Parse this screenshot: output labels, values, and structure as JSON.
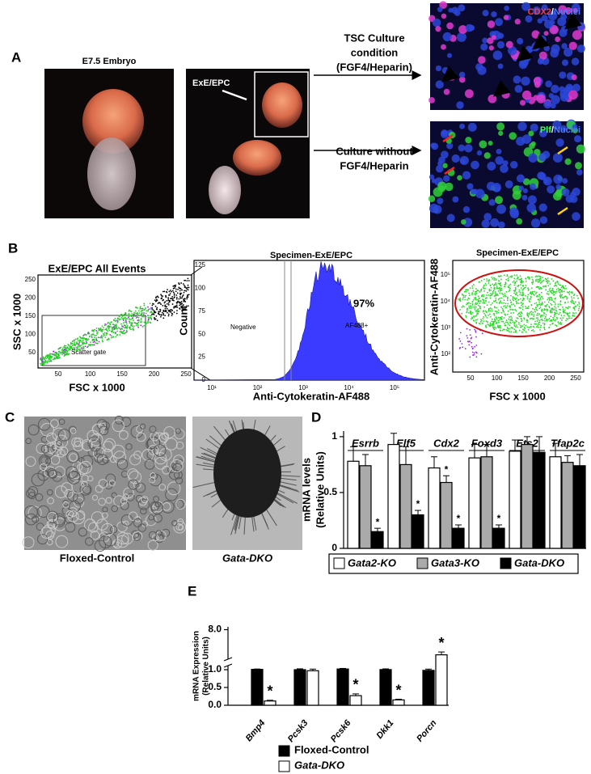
{
  "panel_a": {
    "label": "A",
    "embryo_title": "E7.5 Embryo",
    "inset_label": "ExE/EPC",
    "arrow_top": [
      "TSC Culture",
      "condition",
      "(FGF4/Heparin)"
    ],
    "arrow_bottom": [
      "Culture without",
      "FGF4/Heparin"
    ],
    "stain_top": {
      "marker": "CDX2",
      "separator": "/",
      "counter": "Nuclei"
    },
    "stain_bottom": {
      "marker": "Plf",
      "separator": "/",
      "counter": "Nuclei"
    }
  },
  "panel_b": {
    "label": "B",
    "events_plot": {
      "title": "ExE/EPC All Events",
      "y_label": "SSC x 1000",
      "x_label": "FSC x 1000",
      "gate_label": "Scatter gate",
      "xticks": [
        "50",
        "100",
        "150",
        "200",
        "250"
      ],
      "yticks": [
        "50",
        "100",
        "150",
        "200",
        "250"
      ]
    },
    "histogram": {
      "title": "Specimen-ExE/EPC",
      "y_label": "Count",
      "x_label": "Anti-Cytokeratin-AF488",
      "negative_label": "Negative",
      "positive_label": "AF488+",
      "percent": "97%",
      "yticks": [
        "0",
        "25",
        "50",
        "75",
        "100",
        "125"
      ],
      "xticks": [
        "10¹",
        "10²",
        "10³",
        "10⁴",
        "10⁵"
      ]
    },
    "gated_plot": {
      "title": "Specimen-ExE/EPC",
      "y_label": "Anti-Cytokeratin-AF488",
      "x_label": "FSC x 1000",
      "xticks": [
        "50",
        "100",
        "150",
        "200",
        "250"
      ],
      "yticks": [
        "10²",
        "10³",
        "10⁴",
        "10⁵"
      ]
    }
  },
  "panel_c": {
    "label": "C",
    "left_caption": "Floxed-Control",
    "right_caption": "Gata-DKO"
  },
  "chart_data": [
    {
      "type": "bar",
      "panel_label": "D",
      "y_label": [
        "mRNA levels",
        "(Relative Units)"
      ],
      "categories": [
        "Esrrb",
        "Elf5",
        "Cdx2",
        "Foxd3",
        "Ets2",
        "Tfap2c"
      ],
      "ylim": [
        0,
        1.05
      ],
      "yticks": [
        0,
        0.5,
        1
      ],
      "series": [
        {
          "name": "Gata2-KO",
          "color": "#ffffff",
          "values": [
            0.78,
            0.93,
            0.72,
            0.81,
            0.87,
            0.82
          ],
          "errors": [
            0.13,
            0.1,
            0.1,
            0.12,
            0.1,
            0.12
          ],
          "annotations": [
            null,
            null,
            null,
            null,
            null,
            null
          ]
        },
        {
          "name": "Gata3-KO",
          "color": "#aaaaaa",
          "values": [
            0.74,
            0.75,
            0.59,
            0.82,
            0.93,
            0.77
          ],
          "errors": [
            0.1,
            0.16,
            0.06,
            0.11,
            0.07,
            0.06
          ],
          "annotations": [
            null,
            null,
            "*",
            null,
            null,
            null
          ]
        },
        {
          "name": "Gata-DKO",
          "color": "#000000",
          "values": [
            0.15,
            0.3,
            0.18,
            0.18,
            0.86,
            0.74
          ],
          "errors": [
            0.03,
            0.04,
            0.03,
            0.03,
            0.14,
            0.1
          ],
          "annotations": [
            "*",
            "*",
            "*",
            "*",
            null,
            null
          ]
        }
      ]
    },
    {
      "type": "bar",
      "panel_label": "E",
      "y_label": [
        "mRNA Expression",
        "(Relative Units)"
      ],
      "categories": [
        "Bmp4",
        "Pcsk3",
        "Pcsk6",
        "Dkk1",
        "Porcn"
      ],
      "ylim": [
        0,
        8.5
      ],
      "axis_break": true,
      "yticks": [
        {
          "value": 0,
          "label": "0.0"
        },
        {
          "value": 0.5,
          "label": "0.5"
        },
        {
          "value": 1,
          "label": "1.0"
        },
        {
          "value": 8,
          "label": "8.0"
        }
      ],
      "series": [
        {
          "name": "Floxed-Control",
          "color": "#000000",
          "values": [
            1.05,
            1.0,
            1.12,
            1.02,
            0.98
          ],
          "errors": [
            0.07,
            0.15,
            0.1,
            0.12,
            0.12
          ],
          "annotations": [
            null,
            null,
            null,
            null,
            null
          ]
        },
        {
          "name": "Gata-DKO",
          "color": "#ffffff",
          "values": [
            0.12,
            0.97,
            0.27,
            0.15,
            3.6
          ],
          "errors": [
            0.02,
            0.13,
            0.05,
            0.02,
            0.5
          ],
          "annotations": [
            "*",
            null,
            "*",
            "*",
            "*"
          ]
        }
      ]
    }
  ]
}
